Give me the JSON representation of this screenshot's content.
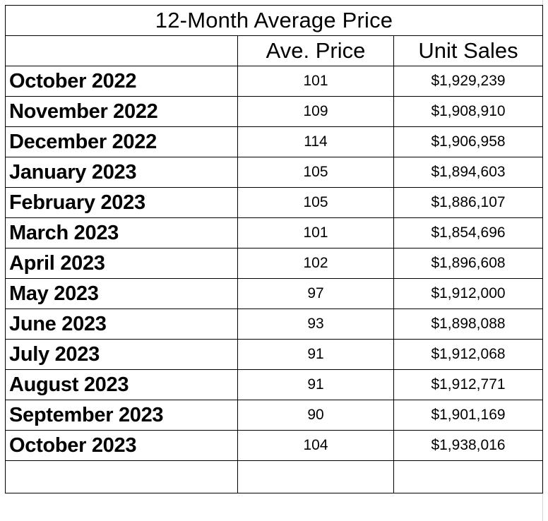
{
  "table": {
    "title": "12-Month Average Price",
    "headers": [
      "",
      "Ave. Price",
      "Unit Sales"
    ],
    "rows": [
      {
        "month": "October 2022",
        "ave_price": "101",
        "unit_sales": "$1,929,239"
      },
      {
        "month": "November 2022",
        "ave_price": "109",
        "unit_sales": "$1,908,910"
      },
      {
        "month": "December 2022",
        "ave_price": "114",
        "unit_sales": "$1,906,958"
      },
      {
        "month": "January 2023",
        "ave_price": "105",
        "unit_sales": "$1,894,603"
      },
      {
        "month": "February 2023",
        "ave_price": "105",
        "unit_sales": "$1,886,107"
      },
      {
        "month": "March 2023",
        "ave_price": "101",
        "unit_sales": "$1,854,696"
      },
      {
        "month": "April 2023",
        "ave_price": "102",
        "unit_sales": "$1,896,608"
      },
      {
        "month": "May 2023",
        "ave_price": "97",
        "unit_sales": "$1,912,000"
      },
      {
        "month": "June 2023",
        "ave_price": "93",
        "unit_sales": "$1,898,088"
      },
      {
        "month": "July 2023",
        "ave_price": "91",
        "unit_sales": "$1,912,068"
      },
      {
        "month": "August 2023",
        "ave_price": "91",
        "unit_sales": "$1,912,771"
      },
      {
        "month": "September 2023",
        "ave_price": "90",
        "unit_sales": "$1,901,169"
      },
      {
        "month": "October 2023",
        "ave_price": "104",
        "unit_sales": "$1,938,016"
      }
    ]
  }
}
